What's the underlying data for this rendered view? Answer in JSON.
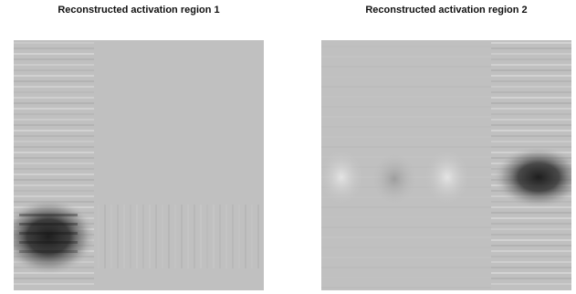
{
  "figure": {
    "panels": [
      {
        "title": "Reconstructed activation region 1",
        "background_color": "#c0c0c0",
        "dark_color": "#1e1e1e",
        "light_color": "#e6e6e6"
      },
      {
        "title": "Reconstructed activation region 2",
        "background_color": "#c0c0c0",
        "dark_color": "#1e1e1e",
        "light_color": "#e6e6e6"
      }
    ]
  }
}
